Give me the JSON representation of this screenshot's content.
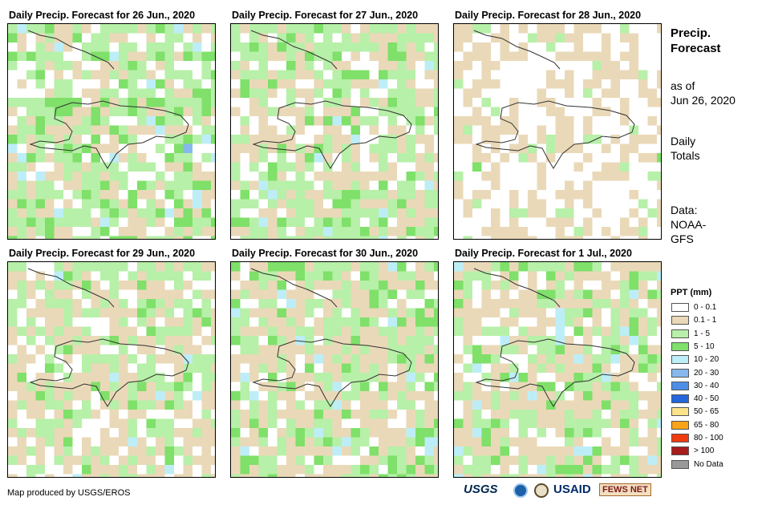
{
  "panels": [
    {
      "title": "Daily Precip. Forecast for 26 Jun., 2020"
    },
    {
      "title": "Daily Precip. Forecast for 27 Jun., 2020"
    },
    {
      "title": "Daily Precip. Forecast for 28 Jun., 2020"
    },
    {
      "title": "Daily Precip. Forecast for 29 Jun., 2020"
    },
    {
      "title": "Daily Precip. Forecast for 30 Jun., 2020"
    },
    {
      "title": "Daily Precip. Forecast for 1 Jul., 2020"
    }
  ],
  "info": {
    "heading_line1": "Precip.",
    "heading_line2": "Forecast",
    "asof_line1": "as of",
    "asof_line2": "Jun 26, 2020",
    "totals_line1": "Daily",
    "totals_line2": "Totals",
    "source_line1": "Data:",
    "source_line2": "NOAA-",
    "source_line3": "GFS"
  },
  "legend": {
    "title": "PPT (mm)",
    "items": [
      {
        "label": "0 - 0.1",
        "color": "#ffffff"
      },
      {
        "label": "0.1 - 1",
        "color": "#ead9b8"
      },
      {
        "label": "1 - 5",
        "color": "#b7f0a8"
      },
      {
        "label": "5 - 10",
        "color": "#7fe06a"
      },
      {
        "label": "10 - 20",
        "color": "#bdeef7"
      },
      {
        "label": "20 - 30",
        "color": "#86b8ee"
      },
      {
        "label": "30 - 40",
        "color": "#4d8ee8"
      },
      {
        "label": "40 - 50",
        "color": "#2466dc"
      },
      {
        "label": "50 - 65",
        "color": "#fde28a"
      },
      {
        "label": "65 - 80",
        "color": "#f8a318"
      },
      {
        "label": "80 - 100",
        "color": "#f03a10"
      },
      {
        "label": "> 100",
        "color": "#a81c1c"
      },
      {
        "label": "No Data",
        "color": "#999999"
      }
    ]
  },
  "footer": {
    "credit": "Map produced by USGS/EROS",
    "logos": [
      "USGS",
      "NOAA",
      "DOI",
      "USAID",
      "FEWS NET"
    ]
  }
}
